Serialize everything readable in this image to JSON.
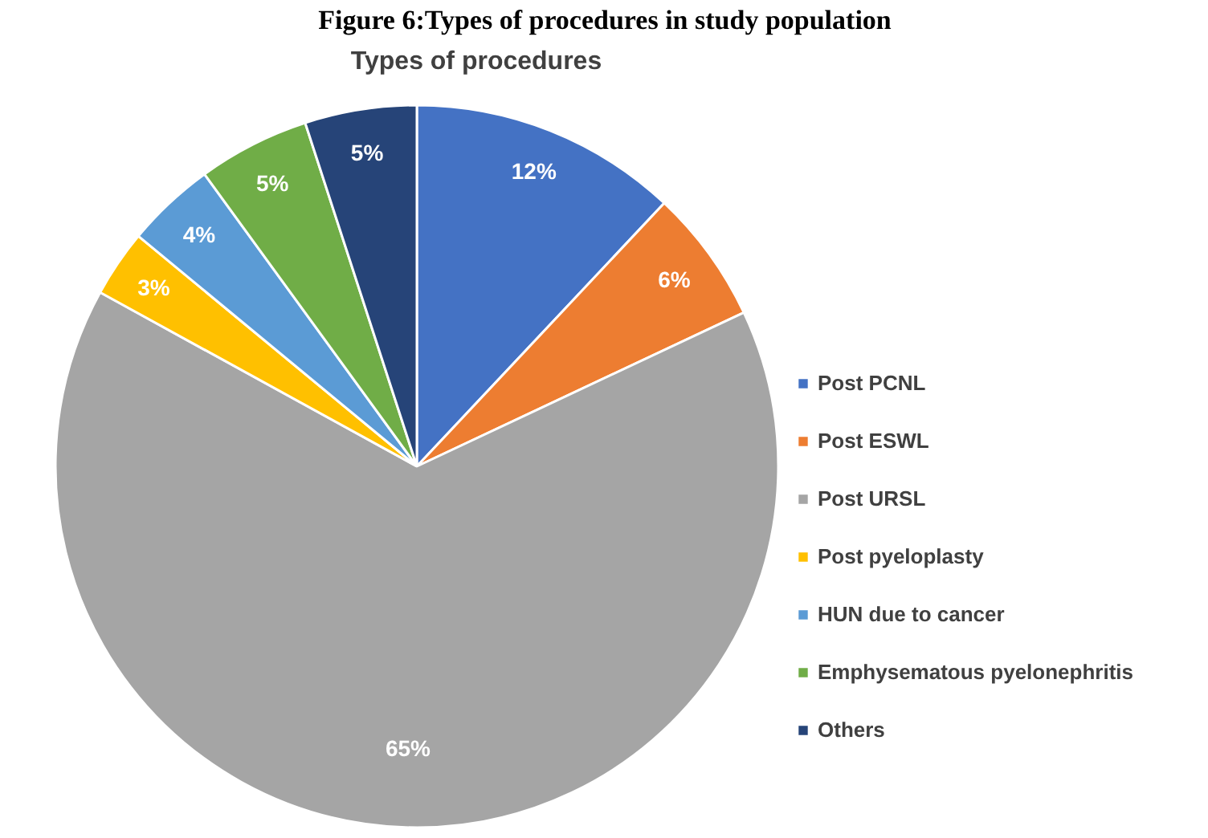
{
  "chart_data": {
    "type": "pie",
    "title": "Types of procedures",
    "annotations": [
      "Figure 6:Types of procedures in study population"
    ],
    "categories": [
      "Post PCNL",
      "Post ESWL",
      "Post URSL",
      "Post pyeloplasty",
      "HUN due to cancer",
      "Emphysematous pyelonephritis",
      "Others"
    ],
    "values": [
      12,
      6,
      65,
      3,
      4,
      5,
      5
    ],
    "colors": [
      "#4472c4",
      "#ed7d31",
      "#a5a5a5",
      "#ffc000",
      "#5b9bd5",
      "#70ad47",
      "#264478"
    ],
    "value_labels": [
      "12%",
      "6%",
      "65%",
      "3%",
      "4%",
      "5%",
      "5%"
    ],
    "legend": "right"
  }
}
